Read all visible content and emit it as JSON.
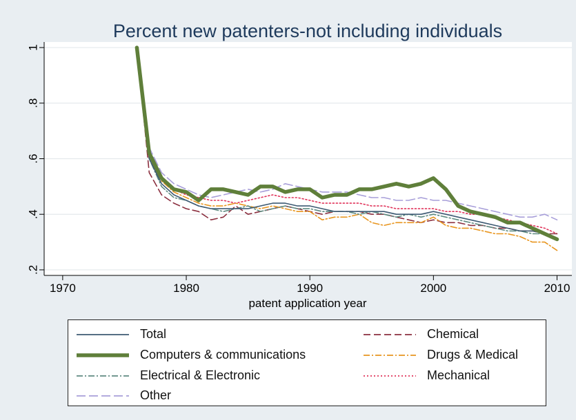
{
  "chart_data": {
    "type": "line",
    "title": "Percent new patenters-not including individuals",
    "xlabel": "patent application year",
    "ylabel": "",
    "xlim": [
      1968.5,
      2011.2
    ],
    "ylim": [
      0.18,
      1.02
    ],
    "xticks": [
      1970,
      1980,
      1990,
      2000,
      2010
    ],
    "xtick_labels": [
      "1970",
      "1980",
      "1990",
      "2000",
      "2010"
    ],
    "yticks": [
      0.2,
      0.4,
      0.6,
      0.8,
      1.0
    ],
    "ytick_labels": [
      ".2",
      ".4",
      ".6",
      ".8",
      "1"
    ],
    "grid": "horizontal",
    "legend_position": "bottom",
    "x": [
      1976,
      1977,
      1978,
      1979,
      1980,
      1981,
      1982,
      1983,
      1984,
      1985,
      1986,
      1987,
      1988,
      1989,
      1990,
      1991,
      1992,
      1993,
      1994,
      1995,
      1996,
      1997,
      1998,
      1999,
      2000,
      2001,
      2002,
      2003,
      2004,
      2005,
      2006,
      2007,
      2008,
      2009,
      2010
    ],
    "series": [
      {
        "name": "Total",
        "color": "#3d5a73",
        "dash": "",
        "width": 1.6,
        "values": [
          1.0,
          0.6,
          0.51,
          0.47,
          0.45,
          0.43,
          0.42,
          0.42,
          0.42,
          0.42,
          0.43,
          0.44,
          0.44,
          0.43,
          0.43,
          0.42,
          0.41,
          0.41,
          0.41,
          0.41,
          0.41,
          0.4,
          0.4,
          0.4,
          0.41,
          0.4,
          0.39,
          0.38,
          0.37,
          0.36,
          0.35,
          0.34,
          0.34,
          0.33,
          0.31
        ]
      },
      {
        "name": "Computers & communications",
        "color": "#5f7f3a",
        "dash": "",
        "width": 5.5,
        "values": [
          1.0,
          0.62,
          0.53,
          0.49,
          0.48,
          0.45,
          0.49,
          0.49,
          0.48,
          0.47,
          0.5,
          0.5,
          0.48,
          0.49,
          0.49,
          0.46,
          0.47,
          0.47,
          0.49,
          0.49,
          0.5,
          0.51,
          0.5,
          0.51,
          0.53,
          0.49,
          0.43,
          0.41,
          0.4,
          0.39,
          0.37,
          0.37,
          0.35,
          0.33,
          0.31
        ]
      },
      {
        "name": "Electrical & Electronic",
        "color": "#5e8a80",
        "dash": "9 3 2 3",
        "width": 1.6,
        "values": [
          1.0,
          0.6,
          0.5,
          0.46,
          0.45,
          0.43,
          0.42,
          0.41,
          0.42,
          0.43,
          0.41,
          0.42,
          0.43,
          0.42,
          0.42,
          0.41,
          0.41,
          0.41,
          0.4,
          0.41,
          0.4,
          0.39,
          0.4,
          0.39,
          0.4,
          0.39,
          0.38,
          0.37,
          0.36,
          0.35,
          0.34,
          0.34,
          0.33,
          0.33,
          0.31
        ]
      },
      {
        "name": "Other",
        "color": "#a79ed9",
        "dash": "13 5",
        "width": 1.6,
        "values": [
          1.0,
          0.64,
          0.55,
          0.51,
          0.49,
          0.47,
          0.46,
          0.47,
          0.48,
          0.49,
          0.48,
          0.49,
          0.51,
          0.5,
          0.49,
          0.48,
          0.48,
          0.48,
          0.47,
          0.46,
          0.46,
          0.45,
          0.45,
          0.46,
          0.45,
          0.45,
          0.44,
          0.43,
          0.42,
          0.41,
          0.4,
          0.39,
          0.39,
          0.4,
          0.38
        ]
      },
      {
        "name": "Chemical",
        "color": "#8b2f3f",
        "dash": "10 5",
        "width": 1.6,
        "values": [
          1.0,
          0.55,
          0.47,
          0.44,
          0.42,
          0.41,
          0.38,
          0.39,
          0.43,
          0.4,
          0.41,
          0.42,
          0.43,
          0.42,
          0.41,
          0.4,
          0.41,
          0.41,
          0.41,
          0.4,
          0.4,
          0.39,
          0.38,
          0.37,
          0.38,
          0.37,
          0.37,
          0.36,
          0.36,
          0.35,
          0.35,
          0.34,
          0.34,
          0.33,
          0.33
        ]
      },
      {
        "name": "Drugs & Medical",
        "color": "#e8951e",
        "dash": "9 3 2 3",
        "width": 1.6,
        "values": [
          1.0,
          0.6,
          0.52,
          0.48,
          0.46,
          0.44,
          0.43,
          0.43,
          0.44,
          0.43,
          0.42,
          0.43,
          0.42,
          0.41,
          0.41,
          0.38,
          0.39,
          0.39,
          0.4,
          0.37,
          0.36,
          0.37,
          0.37,
          0.37,
          0.39,
          0.36,
          0.35,
          0.35,
          0.34,
          0.33,
          0.33,
          0.32,
          0.3,
          0.3,
          0.27
        ]
      },
      {
        "name": "Mechanical",
        "color": "#e0335a",
        "dash": "2 3",
        "width": 1.6,
        "values": [
          1.0,
          0.62,
          0.53,
          0.49,
          0.47,
          0.46,
          0.45,
          0.45,
          0.44,
          0.45,
          0.46,
          0.47,
          0.46,
          0.46,
          0.45,
          0.44,
          0.44,
          0.44,
          0.44,
          0.43,
          0.43,
          0.42,
          0.42,
          0.42,
          0.42,
          0.41,
          0.41,
          0.4,
          0.4,
          0.39,
          0.38,
          0.37,
          0.36,
          0.35,
          0.33
        ]
      }
    ]
  }
}
